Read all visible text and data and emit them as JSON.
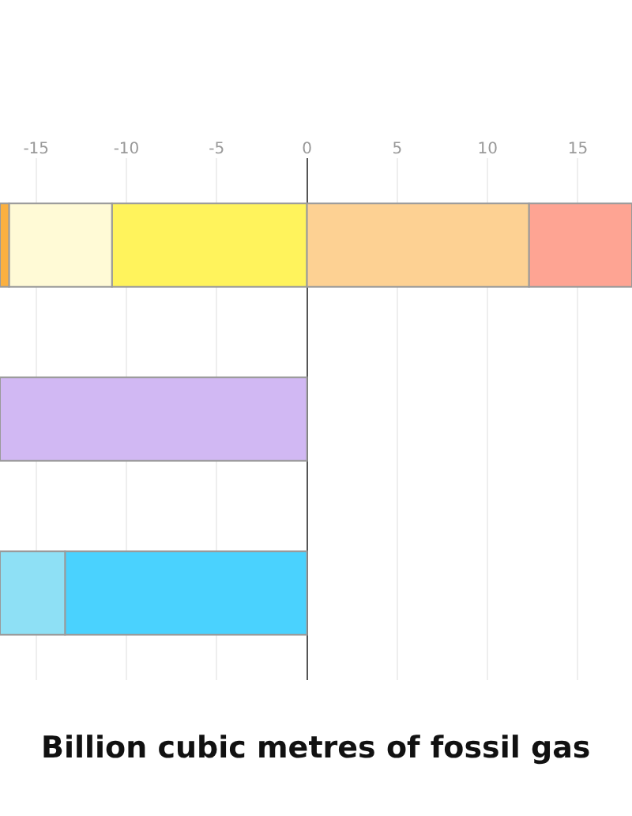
{
  "chart_data": {
    "type": "bar",
    "orientation": "horizontal",
    "stacked": true,
    "xlabel": "Billion cubic metres of fossil gas",
    "categories": [
      null,
      null,
      null
    ],
    "series": [
      {
        "color": "#fff35c",
        "values": [
          -10.8,
          null,
          null
        ]
      },
      {
        "color": "#fffad6",
        "values": [
          -5.7,
          null,
          null
        ]
      },
      {
        "color": "#fbb040",
        "values": [
          -0.5,
          null,
          null
        ]
      },
      {
        "color": "#fdd193",
        "values": [
          12.3,
          null,
          null
        ]
      },
      {
        "color": "#fea493",
        "values": [
          5.7,
          null,
          null
        ]
      },
      {
        "color": "#d1b8f3",
        "values": [
          null,
          -17,
          null
        ]
      },
      {
        "color": "#4ad2fe",
        "values": [
          null,
          null,
          -13.4
        ]
      },
      {
        "color": "#8ee0f5",
        "values": [
          null,
          null,
          -3.6
        ]
      }
    ],
    "xlim": [
      -17,
      18
    ],
    "xticks": [
      -15,
      -10,
      -5,
      0,
      5,
      10,
      15
    ],
    "grid": "x"
  }
}
